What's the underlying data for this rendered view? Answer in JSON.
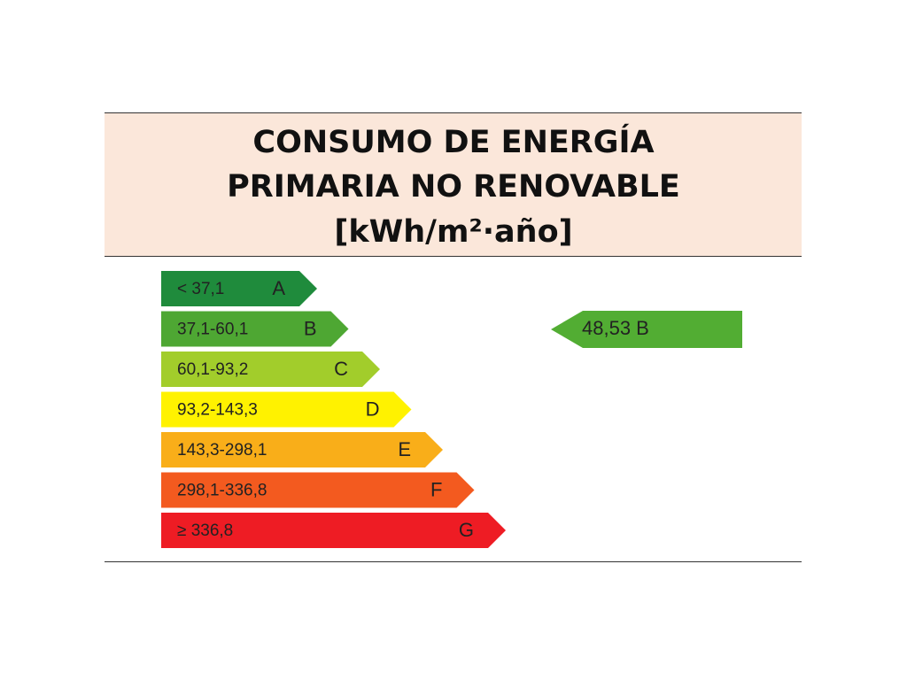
{
  "header": {
    "title_lines": [
      "CONSUMO DE ENERGÍA",
      "PRIMARIA NO RENOVABLE",
      "[kWh/m²·año]"
    ]
  },
  "bands": [
    {
      "range": "< 37,1",
      "letter": "A",
      "color": "#1f8b3c"
    },
    {
      "range": "37,1-60,1",
      "letter": "B",
      "color": "#4ea733"
    },
    {
      "range": "60,1-93,2",
      "letter": "C",
      "color": "#a2cd2b"
    },
    {
      "range": "93,2-143,3",
      "letter": "D",
      "color": "#fff200"
    },
    {
      "range": "143,3-298,1",
      "letter": "E",
      "color": "#f9ae19"
    },
    {
      "range": "298,1-336,8",
      "letter": "F",
      "color": "#f35a1f"
    },
    {
      "range": "≥ 336,8",
      "letter": "G",
      "color": "#ee1c24"
    }
  ],
  "rating": {
    "label": "48,53 B",
    "color": "#52ad33"
  }
}
